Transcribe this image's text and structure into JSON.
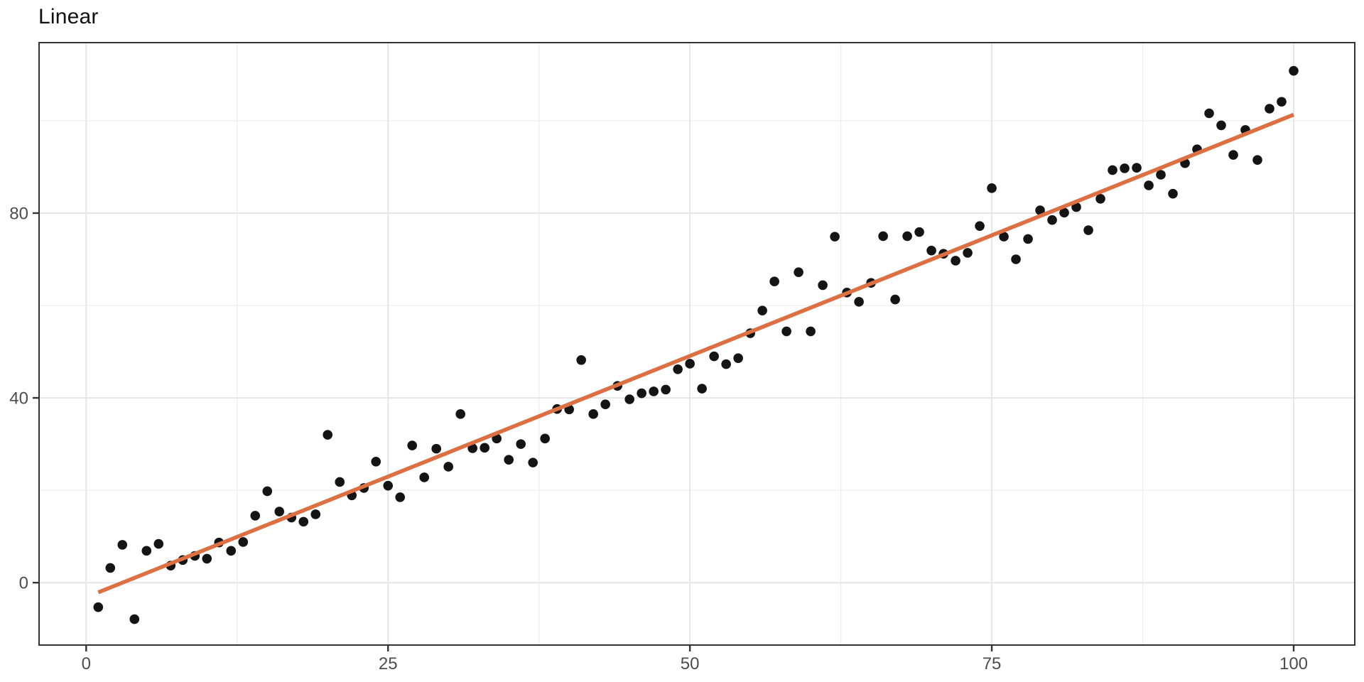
{
  "page": {
    "title": "Linear"
  },
  "chart_data": {
    "type": "scatter",
    "title": "Linear",
    "xlabel": "",
    "ylabel": "",
    "legend": "none",
    "grid": true,
    "xlim": [
      -3.9,
      105.06
    ],
    "ylim": [
      -13.5,
      116.9
    ],
    "x_ticks": [
      0,
      25,
      50,
      75,
      100
    ],
    "x_minor_ticks": [
      12.5,
      37.5,
      62.5,
      87.5
    ],
    "y_ticks": [
      0,
      40,
      80
    ],
    "y_minor_ticks": [
      20,
      60,
      100
    ],
    "colors": {
      "point": "#141414",
      "trend_line": "#DC7043",
      "major_grid": "#E6E6E6",
      "minor_grid": "#EFEFEF",
      "panel_border": "#333333",
      "tick_mark": "#333333",
      "tick_label": "#4D4D4D",
      "background": "#FFFFFF"
    },
    "points": [
      [
        1,
        -5.3
      ],
      [
        2,
        3.2
      ],
      [
        3,
        8.2
      ],
      [
        4,
        -7.9
      ],
      [
        5,
        6.9
      ],
      [
        6,
        8.4
      ],
      [
        7,
        3.7
      ],
      [
        8,
        4.9
      ],
      [
        9,
        5.8
      ],
      [
        10,
        5.2
      ],
      [
        11,
        8.7
      ],
      [
        12,
        6.9
      ],
      [
        13,
        8.8
      ],
      [
        14,
        14.5
      ],
      [
        15,
        19.8
      ],
      [
        16,
        15.4
      ],
      [
        17,
        14.1
      ],
      [
        18,
        13.2
      ],
      [
        19,
        14.8
      ],
      [
        20,
        32
      ],
      [
        21,
        21.8
      ],
      [
        22,
        18.9
      ],
      [
        23,
        20.5
      ],
      [
        24,
        26.2
      ],
      [
        25,
        21
      ],
      [
        26,
        18.5
      ],
      [
        27,
        29.7
      ],
      [
        28,
        22.8
      ],
      [
        29,
        29
      ],
      [
        30,
        25.1
      ],
      [
        31,
        36.5
      ],
      [
        32,
        29.1
      ],
      [
        33,
        29.2
      ],
      [
        34,
        31.2
      ],
      [
        35,
        26.6
      ],
      [
        36,
        30
      ],
      [
        37,
        26
      ],
      [
        38,
        31.2
      ],
      [
        39,
        37.6
      ],
      [
        40,
        37.5
      ],
      [
        41,
        48.2
      ],
      [
        42,
        36.5
      ],
      [
        43,
        38.6
      ],
      [
        44,
        42.6
      ],
      [
        45,
        39.7
      ],
      [
        46,
        41
      ],
      [
        47,
        41.4
      ],
      [
        48,
        41.8
      ],
      [
        49,
        46.2
      ],
      [
        50,
        47.4
      ],
      [
        51,
        42
      ],
      [
        52,
        49
      ],
      [
        53,
        47.3
      ],
      [
        54,
        48.6
      ],
      [
        55,
        54
      ],
      [
        56,
        58.9
      ],
      [
        57,
        65.2
      ],
      [
        58,
        54.4
      ],
      [
        59,
        67.2
      ],
      [
        60,
        54.4
      ],
      [
        61,
        64.4
      ],
      [
        62,
        74.9
      ],
      [
        63,
        62.8
      ],
      [
        64,
        60.8
      ],
      [
        65,
        64.9
      ],
      [
        66,
        75
      ],
      [
        67,
        61.3
      ],
      [
        68,
        75
      ],
      [
        69,
        75.9
      ],
      [
        70,
        71.9
      ],
      [
        71,
        71.2
      ],
      [
        72,
        69.7
      ],
      [
        73,
        71.4
      ],
      [
        74,
        77.2
      ],
      [
        75,
        85.4
      ],
      [
        76,
        74.9
      ],
      [
        77,
        70
      ],
      [
        78,
        74.4
      ],
      [
        79,
        80.6
      ],
      [
        80,
        78.5
      ],
      [
        81,
        80.1
      ],
      [
        82,
        81.3
      ],
      [
        83,
        76.3
      ],
      [
        84,
        83.1
      ],
      [
        85,
        89.3
      ],
      [
        86,
        89.7
      ],
      [
        87,
        89.8
      ],
      [
        88,
        86
      ],
      [
        89,
        88.3
      ],
      [
        90,
        84.2
      ],
      [
        91,
        90.8
      ],
      [
        92,
        93.8
      ],
      [
        93,
        101.6
      ],
      [
        94,
        99
      ],
      [
        95,
        92.6
      ],
      [
        96,
        98
      ],
      [
        97,
        91.5
      ],
      [
        98,
        102.6
      ],
      [
        99,
        104.1
      ],
      [
        100,
        110.8
      ]
    ],
    "trend_line": {
      "fit": "linear",
      "endpoints": [
        [
          1,
          -2.1
        ],
        [
          100,
          101.3
        ]
      ]
    }
  }
}
